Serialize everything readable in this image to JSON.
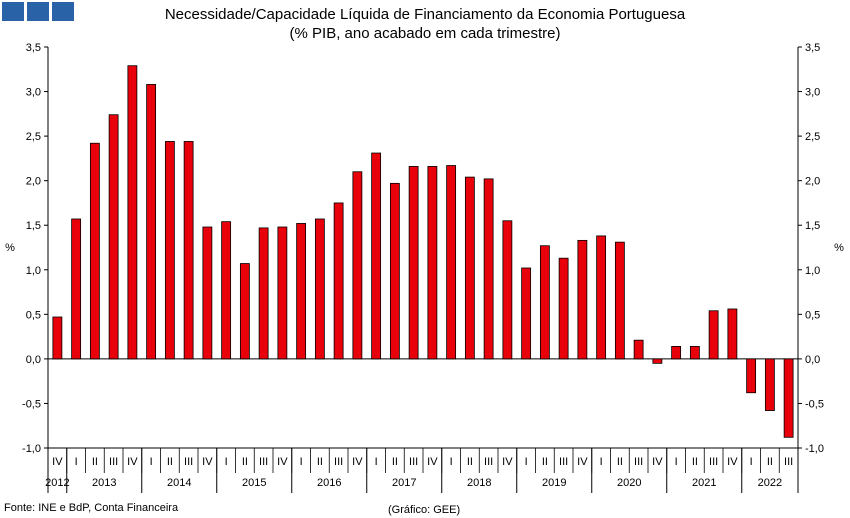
{
  "header": {
    "title": "Necessidade/Capacidade Líquida de Financiamento da Economia Portuguesa",
    "subtitle": "(% PIB, ano acabado em cada trimestre)"
  },
  "footer": {
    "source": "Fonte: INE e BdP, Conta Financeira",
    "credit": "(Gráfico: GEE)"
  },
  "colors": {
    "bar": "#e8000b",
    "logo": "#2a62a8"
  },
  "chart_data": {
    "type": "bar",
    "title": "Necessidade/Capacidade Líquida de Financiamento da Economia Portuguesa",
    "subtitle": "(% PIB, ano acabado em cada trimestre)",
    "ylabel_left": "%",
    "ylabel_right": "%",
    "ylim": [
      -1.0,
      3.5
    ],
    "yticks": [
      "3,5",
      "3,0",
      "2,5",
      "2,0",
      "1,5",
      "1,0",
      "0,5",
      "0,0",
      "-0,5",
      "-1,0"
    ],
    "grid": false,
    "quarters": [
      "IV",
      "I",
      "II",
      "III",
      "IV",
      "I",
      "II",
      "III",
      "IV",
      "I",
      "II",
      "III",
      "IV",
      "I",
      "II",
      "III",
      "IV",
      "I",
      "II",
      "III",
      "IV",
      "I",
      "II",
      "III",
      "IV",
      "I",
      "II",
      "III",
      "IV",
      "I",
      "II",
      "III",
      "IV",
      "I",
      "II",
      "III",
      "IV",
      "I",
      "II",
      "III"
    ],
    "years": [
      {
        "label": "2012",
        "count": 1
      },
      {
        "label": "2013",
        "count": 4
      },
      {
        "label": "2014",
        "count": 4
      },
      {
        "label": "2015",
        "count": 4
      },
      {
        "label": "2016",
        "count": 4
      },
      {
        "label": "2017",
        "count": 4
      },
      {
        "label": "2018",
        "count": 4
      },
      {
        "label": "2019",
        "count": 4
      },
      {
        "label": "2020",
        "count": 4
      },
      {
        "label": "2021",
        "count": 4
      },
      {
        "label": "2022",
        "count": 3
      }
    ],
    "values": [
      0.47,
      1.57,
      2.42,
      2.74,
      3.29,
      3.08,
      2.44,
      2.44,
      1.48,
      1.54,
      1.07,
      1.47,
      1.48,
      1.52,
      1.57,
      1.75,
      2.1,
      2.31,
      1.97,
      2.16,
      2.16,
      2.17,
      2.04,
      2.02,
      1.55,
      1.02,
      1.27,
      1.13,
      1.33,
      1.38,
      1.31,
      0.21,
      -0.05,
      0.14,
      0.14,
      0.54,
      0.56,
      -0.38,
      -0.58,
      -0.88
    ]
  }
}
